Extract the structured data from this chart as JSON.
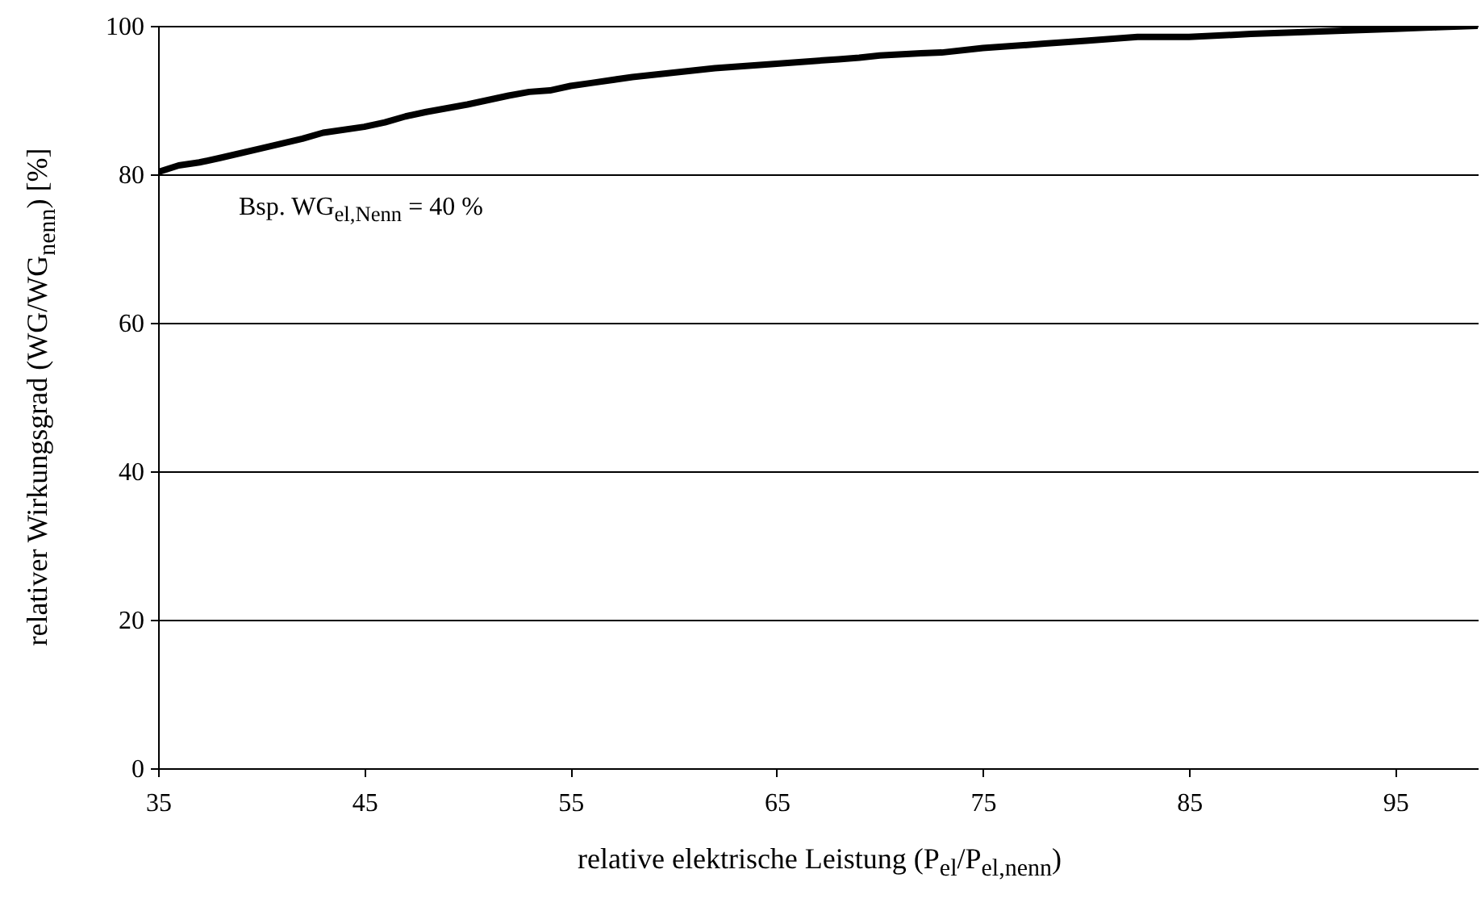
{
  "chart_data": {
    "type": "line",
    "xlabel": "relative elektrische Leistung (P$_{el}$/P$_{el,nenn}$)",
    "ylabel": "relativer Wirkungsgrad (WG/WG$_{nenn}$) [%]",
    "annotations": [
      "Bsp. WG$_{el,Nenn}$ = 40 %"
    ],
    "x": [
      35,
      36,
      37,
      38,
      40,
      42,
      43,
      45,
      46,
      47,
      48,
      50,
      52,
      53,
      54,
      55,
      56,
      58,
      60,
      62,
      65,
      68,
      69,
      70,
      72,
      73,
      75,
      78,
      80,
      82.5,
      85,
      88,
      90,
      93,
      95,
      97,
      99
    ],
    "series": [
      {
        "color": "#000000",
        "values": [
          80.3,
          81.2,
          81.6,
          82.2,
          83.5,
          84.8,
          85.6,
          86.4,
          87.0,
          87.8,
          88.4,
          89.4,
          90.6,
          91.1,
          91.3,
          91.9,
          92.3,
          93.1,
          93.7,
          94.3,
          94.9,
          95.5,
          95.7,
          96.0,
          96.3,
          96.4,
          97.0,
          97.6,
          98.0,
          98.5,
          98.5,
          98.9,
          99.1,
          99.4,
          99.6,
          99.8,
          100
        ]
      }
    ],
    "xlim": [
      35,
      99
    ],
    "xticks": [
      35,
      45,
      55,
      65,
      75,
      85,
      95
    ],
    "ylim": [
      0,
      100
    ],
    "yticks": [
      0,
      20,
      40,
      60,
      80,
      100
    ],
    "grid": "y",
    "line_style": "solid"
  }
}
